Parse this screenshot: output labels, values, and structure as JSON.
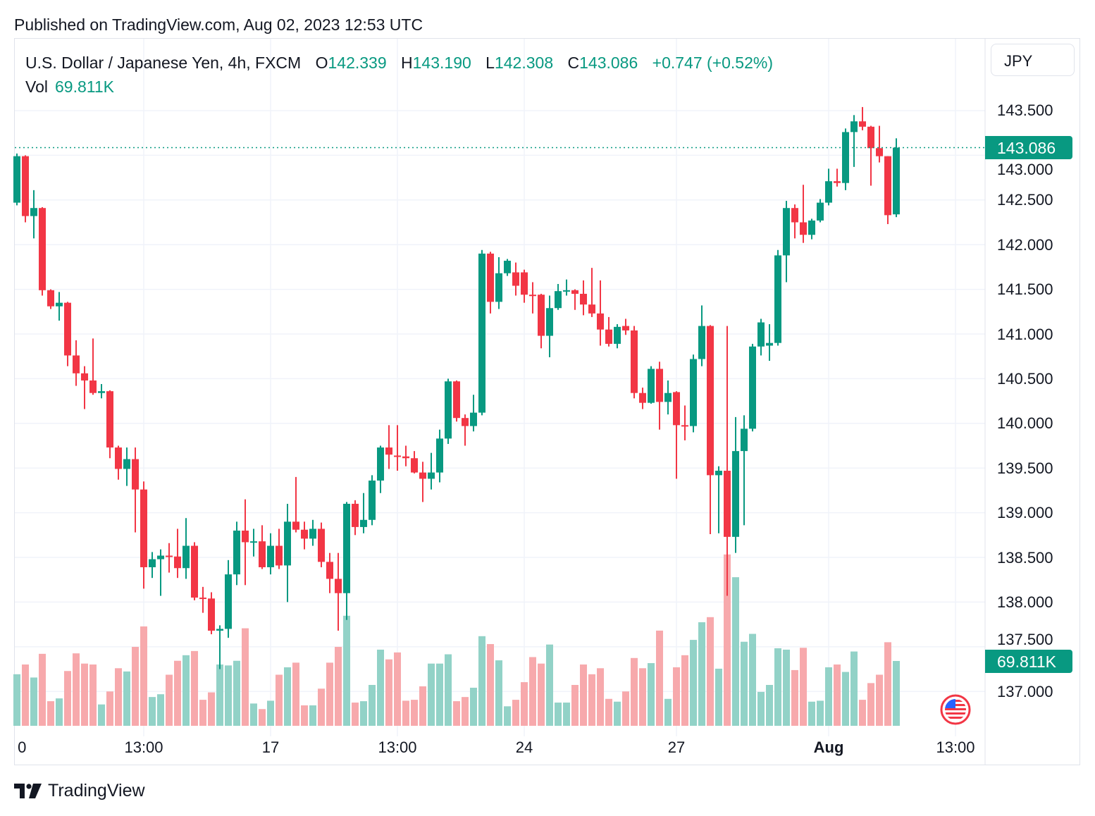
{
  "published": "Published on TradingView.com, Aug 02, 2023 12:53 UTC",
  "legend": {
    "symbol": "U.S. Dollar / Japanese Yen, 4h, FXCM",
    "o_label": "O",
    "o": "142.339",
    "h_label": "H",
    "h": "143.190",
    "l_label": "L",
    "l": "142.308",
    "c_label": "C",
    "c": "143.086",
    "change": "+0.747 (+0.52%)",
    "vol_label": "Vol",
    "vol": "69.811K"
  },
  "currency_button": "JPY",
  "last_price_tag": "143.086",
  "last_volume_tag": "69.811K",
  "brand": "TradingView",
  "colors": {
    "up": "#089981",
    "down": "#F23645",
    "up_vol": "#92D2C7",
    "down_vol": "#F7A9AC",
    "grid": "#F0F3FA"
  },
  "chart_data": {
    "type": "candlestick",
    "title": "U.S. Dollar / Japanese Yen, 4h, FXCM",
    "ylim": [
      136.6,
      143.9
    ],
    "y_ticks": [
      "137.000",
      "137.500",
      "138.000",
      "138.500",
      "139.000",
      "139.500",
      "140.000",
      "140.500",
      "141.000",
      "141.500",
      "142.000",
      "142.500",
      "143.000",
      "143.500"
    ],
    "x_ticks": [
      {
        "label": "0",
        "bar": 0.6,
        "bold": false
      },
      {
        "label": "13:00",
        "bar": 15,
        "bold": false
      },
      {
        "label": "17",
        "bar": 30,
        "bold": false
      },
      {
        "label": "13:00",
        "bar": 45,
        "bold": false
      },
      {
        "label": "24",
        "bar": 60,
        "bold": false
      },
      {
        "label": "27",
        "bar": 78,
        "bold": false
      },
      {
        "label": "Aug",
        "bar": 96,
        "bold": true
      },
      {
        "label": "13:00",
        "bar": 111,
        "bold": false
      }
    ],
    "last_price": 143.086,
    "ohlc": [
      [
        142.47,
        143.02,
        142.44,
        142.99
      ],
      [
        142.99,
        143.0,
        142.25,
        142.32
      ],
      [
        142.32,
        142.61,
        142.07,
        142.41
      ],
      [
        142.41,
        142.42,
        141.43,
        141.49
      ],
      [
        141.49,
        141.5,
        141.28,
        141.31
      ],
      [
        141.31,
        141.47,
        141.15,
        141.35
      ],
      [
        141.35,
        141.36,
        140.64,
        140.76
      ],
      [
        140.76,
        140.93,
        140.42,
        140.56
      ],
      [
        140.56,
        140.64,
        140.16,
        140.48
      ],
      [
        140.48,
        140.95,
        140.32,
        140.34
      ],
      [
        140.34,
        140.44,
        140.28,
        140.36
      ],
      [
        140.36,
        140.37,
        139.61,
        139.73
      ],
      [
        139.73,
        139.75,
        139.37,
        139.49
      ],
      [
        139.49,
        139.73,
        139.3,
        139.6
      ],
      [
        139.6,
        139.73,
        138.78,
        139.26
      ],
      [
        139.26,
        139.35,
        138.15,
        138.39
      ],
      [
        138.39,
        138.56,
        138.27,
        138.48
      ],
      [
        138.48,
        138.59,
        138.07,
        138.52
      ],
      [
        138.52,
        138.66,
        138.33,
        138.51
      ],
      [
        138.51,
        138.82,
        138.27,
        138.38
      ],
      [
        138.38,
        138.94,
        138.26,
        138.63
      ],
      [
        138.63,
        138.67,
        138.02,
        138.05
      ],
      [
        138.05,
        138.17,
        137.88,
        138.04
      ],
      [
        138.04,
        138.11,
        137.64,
        137.68
      ],
      [
        137.68,
        137.74,
        137.25,
        137.7
      ],
      [
        137.7,
        138.47,
        137.6,
        138.31
      ],
      [
        138.31,
        138.9,
        138.19,
        138.8
      ],
      [
        138.8,
        139.15,
        138.19,
        138.67
      ],
      [
        138.67,
        138.82,
        138.51,
        138.68
      ],
      [
        138.68,
        138.86,
        138.37,
        138.39
      ],
      [
        138.39,
        138.77,
        138.31,
        138.63
      ],
      [
        138.63,
        138.82,
        138.37,
        138.41
      ],
      [
        138.41,
        139.1,
        138.0,
        138.9
      ],
      [
        138.9,
        139.4,
        138.78,
        138.81
      ],
      [
        138.81,
        138.9,
        138.59,
        138.71
      ],
      [
        138.71,
        138.92,
        138.63,
        138.82
      ],
      [
        138.82,
        138.89,
        138.39,
        138.45
      ],
      [
        138.45,
        138.55,
        138.1,
        138.26
      ],
      [
        138.26,
        138.55,
        137.68,
        138.1
      ],
      [
        138.1,
        139.12,
        137.8,
        139.1
      ],
      [
        139.1,
        139.14,
        138.75,
        138.84
      ],
      [
        138.84,
        139.22,
        138.77,
        138.92
      ],
      [
        138.92,
        139.42,
        138.86,
        139.36
      ],
      [
        139.36,
        139.75,
        139.22,
        139.73
      ],
      [
        139.73,
        139.98,
        139.49,
        139.65
      ],
      [
        139.64,
        139.98,
        139.47,
        139.63
      ],
      [
        139.63,
        139.75,
        139.52,
        139.61
      ],
      [
        139.61,
        139.69,
        139.44,
        139.45
      ],
      [
        139.45,
        139.57,
        139.12,
        139.38
      ],
      [
        139.38,
        139.67,
        139.26,
        139.45
      ],
      [
        139.45,
        139.93,
        139.34,
        139.83
      ],
      [
        139.83,
        140.5,
        139.77,
        140.47
      ],
      [
        140.47,
        140.48,
        140.02,
        140.06
      ],
      [
        140.06,
        140.1,
        139.75,
        139.97
      ],
      [
        139.97,
        140.32,
        139.91,
        140.12
      ],
      [
        140.12,
        141.94,
        140.09,
        141.9
      ],
      [
        141.9,
        141.92,
        141.23,
        141.36
      ],
      [
        141.36,
        141.86,
        141.28,
        141.68
      ],
      [
        141.68,
        141.84,
        141.65,
        141.82
      ],
      [
        141.69,
        141.8,
        141.43,
        141.54
      ],
      [
        141.69,
        141.72,
        141.35,
        141.44
      ],
      [
        141.44,
        141.58,
        141.23,
        141.43
      ],
      [
        141.44,
        141.45,
        140.84,
        140.98
      ],
      [
        140.98,
        141.43,
        140.74,
        141.29
      ],
      [
        141.29,
        141.56,
        141.27,
        141.48
      ],
      [
        141.48,
        141.61,
        141.43,
        141.49
      ],
      [
        141.49,
        141.5,
        141.27,
        141.45
      ],
      [
        141.45,
        141.6,
        141.21,
        141.33
      ],
      [
        141.33,
        141.74,
        141.19,
        141.23
      ],
      [
        141.23,
        141.6,
        140.87,
        141.05
      ],
      [
        141.05,
        141.19,
        140.86,
        140.89
      ],
      [
        140.89,
        141.11,
        140.84,
        141.08
      ],
      [
        141.09,
        141.17,
        140.99,
        141.04
      ],
      [
        141.04,
        141.09,
        140.28,
        140.34
      ],
      [
        140.34,
        140.4,
        140.16,
        140.23
      ],
      [
        140.23,
        140.64,
        140.22,
        140.61
      ],
      [
        140.61,
        140.69,
        139.93,
        140.24
      ],
      [
        140.24,
        140.48,
        140.1,
        140.34
      ],
      [
        140.35,
        140.36,
        139.38,
        139.98
      ],
      [
        139.98,
        140.2,
        139.81,
        139.97
      ],
      [
        139.97,
        140.77,
        139.9,
        140.72
      ],
      [
        140.72,
        141.32,
        140.64,
        141.09
      ],
      [
        141.09,
        141.1,
        138.76,
        139.42
      ],
      [
        139.42,
        139.52,
        138.77,
        139.47
      ],
      [
        139.47,
        141.09,
        138.07,
        138.73
      ],
      [
        138.73,
        140.07,
        138.55,
        139.69
      ],
      [
        139.69,
        140.09,
        138.86,
        139.94
      ],
      [
        139.94,
        140.89,
        139.91,
        140.86
      ],
      [
        140.86,
        141.17,
        140.76,
        141.13
      ],
      [
        140.87,
        141.11,
        140.7,
        140.9
      ],
      [
        140.9,
        141.94,
        140.87,
        141.88
      ],
      [
        141.88,
        142.49,
        141.58,
        142.41
      ],
      [
        142.41,
        142.45,
        142.07,
        142.25
      ],
      [
        142.25,
        142.67,
        142.02,
        142.11
      ],
      [
        142.11,
        142.29,
        142.06,
        142.27
      ],
      [
        142.27,
        142.51,
        142.25,
        142.47
      ],
      [
        142.47,
        142.85,
        142.44,
        142.71
      ],
      [
        142.71,
        142.85,
        142.65,
        142.69
      ],
      [
        142.69,
        143.3,
        142.61,
        143.26
      ],
      [
        143.26,
        143.45,
        142.87,
        143.38
      ],
      [
        143.38,
        143.54,
        143.28,
        143.32
      ],
      [
        143.32,
        143.33,
        142.66,
        143.08
      ],
      [
        143.08,
        143.33,
        142.92,
        142.99
      ],
      [
        142.99,
        142.99,
        142.23,
        142.33
      ],
      [
        142.339,
        143.19,
        142.308,
        143.086
      ]
    ],
    "volume_k": [
      55.5,
      66,
      52,
      77.5,
      26.5,
      29.5,
      59,
      78,
      67,
      66,
      23,
      37,
      62,
      58.5,
      85,
      107,
      31,
      34,
      55,
      70,
      76,
      80.5,
      28,
      36,
      66,
      65,
      70,
      105,
      24,
      18,
      27,
      55,
      63,
      68,
      22,
      22,
      40,
      68,
      85,
      118.5,
      25,
      26.5,
      44,
      82,
      71.5,
      79,
      27,
      28,
      42.5,
      67,
      67,
      77,
      26.5,
      31,
      41,
      96.5,
      88,
      70.5,
      21,
      28,
      47,
      74,
      67,
      87.5,
      25,
      25,
      44,
      66,
      55.5,
      62,
      29,
      26,
      37,
      73,
      62,
      67.5,
      102.5,
      29,
      63,
      76,
      92.5,
      111.5,
      117,
      61.5,
      184.5,
      160,
      90.5,
      99,
      36.5,
      44,
      83.5,
      82,
      60,
      84,
      26,
      27,
      63,
      66,
      58,
      80,
      28,
      46,
      55,
      90,
      69.811
    ]
  }
}
